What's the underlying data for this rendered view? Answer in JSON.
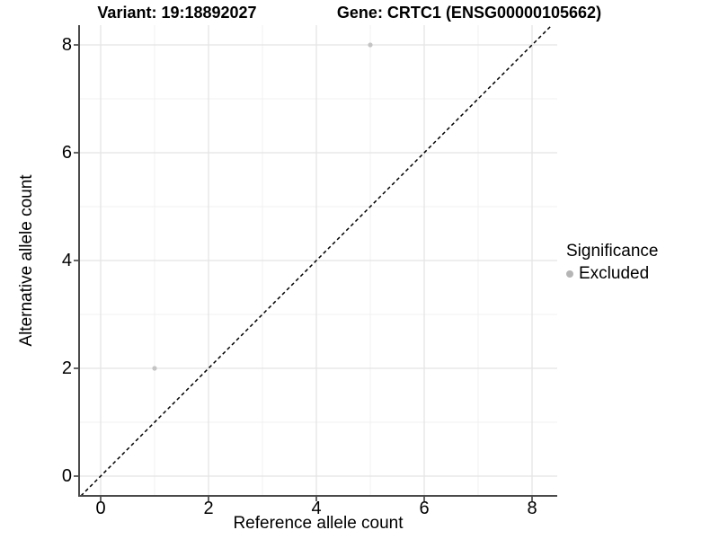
{
  "chart_data": {
    "type": "scatter",
    "title_left": "Variant: 19:18892027",
    "title_right": "Gene: CRTC1 (ENSG00000105662)",
    "xlabel": "Reference allele count",
    "ylabel": "Alternative allele count",
    "xlim": [
      -0.4,
      8.47
    ],
    "ylim": [
      -0.37,
      8.37
    ],
    "xticks": [
      0,
      2,
      4,
      6,
      8
    ],
    "yticks": [
      0,
      2,
      4,
      6,
      8
    ],
    "minor_xticks": [
      1,
      3,
      5,
      7
    ],
    "minor_yticks": [
      1,
      3,
      5,
      7
    ],
    "grid": true,
    "legend": {
      "title": "Significance",
      "position": "right",
      "items": [
        {
          "label": "Excluded",
          "color": "#b5b5b5"
        }
      ]
    },
    "series": [
      {
        "name": "Excluded",
        "color": "#c4c4c4",
        "points": [
          {
            "x": 1,
            "y": 2
          },
          {
            "x": 5,
            "y": 8
          }
        ]
      }
    ],
    "reference_line": {
      "type": "identity (y = x)",
      "style": "dashed",
      "color": "#000000"
    },
    "colors": {
      "background": "#ffffff",
      "grid_major": "#e4e4e4",
      "grid_minor": "#f1f1f1",
      "axis_line": "#4a4a4a",
      "tick_mark": "#333333"
    }
  }
}
